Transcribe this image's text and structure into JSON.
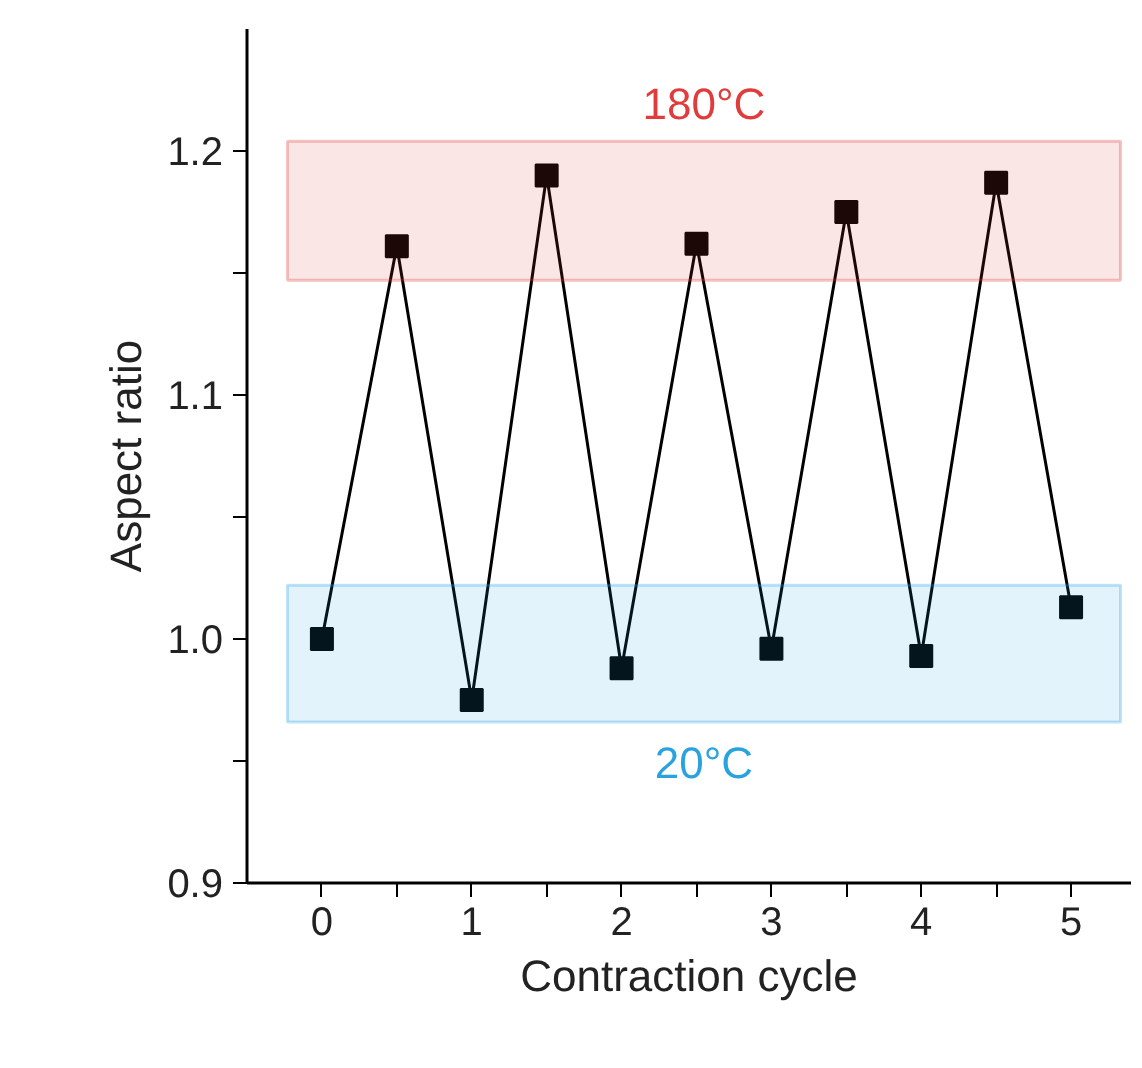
{
  "chart_data": {
    "type": "line",
    "xlabel": "Contraction cycle",
    "ylabel": "Aspect ratio",
    "x": [
      0,
      0.5,
      1,
      1.5,
      2,
      2.5,
      3,
      3.5,
      4,
      4.5,
      5
    ],
    "series": [
      {
        "color": "#000000",
        "values": [
          1.0,
          1.161,
          0.975,
          1.19,
          0.988,
          1.162,
          0.996,
          1.175,
          0.993,
          1.187,
          1.013
        ]
      }
    ],
    "marker": "square",
    "line_style": "solid",
    "grid": false,
    "xlim": [
      -0.5,
      5.4
    ],
    "xticks": [
      0,
      {
        "value": 0.5,
        "label": null
      },
      1,
      {
        "value": 1.5,
        "label": null
      },
      2,
      {
        "value": 2.5,
        "label": null
      },
      3,
      {
        "value": 3.5,
        "label": null
      },
      4,
      {
        "value": 4.5,
        "label": null
      },
      5
    ],
    "ylim": [
      0.9,
      1.25
    ],
    "yticks": [
      {
        "value": 0.9,
        "label": "0.9"
      },
      {
        "value": 0.95,
        "label": null
      },
      {
        "value": 1.0,
        "label": "1.0"
      },
      {
        "value": 1.05,
        "label": null
      },
      1.1,
      {
        "value": 1.15,
        "label": null
      },
      1.2
    ],
    "bands": [
      {
        "axis": "y",
        "from": 1.147,
        "to": 1.204,
        "label": "180°C",
        "color": "#e03c3c"
      },
      {
        "axis": "y",
        "from": 0.966,
        "to": 1.022,
        "label": "20°C",
        "color": "#29a3e0"
      }
    ]
  }
}
